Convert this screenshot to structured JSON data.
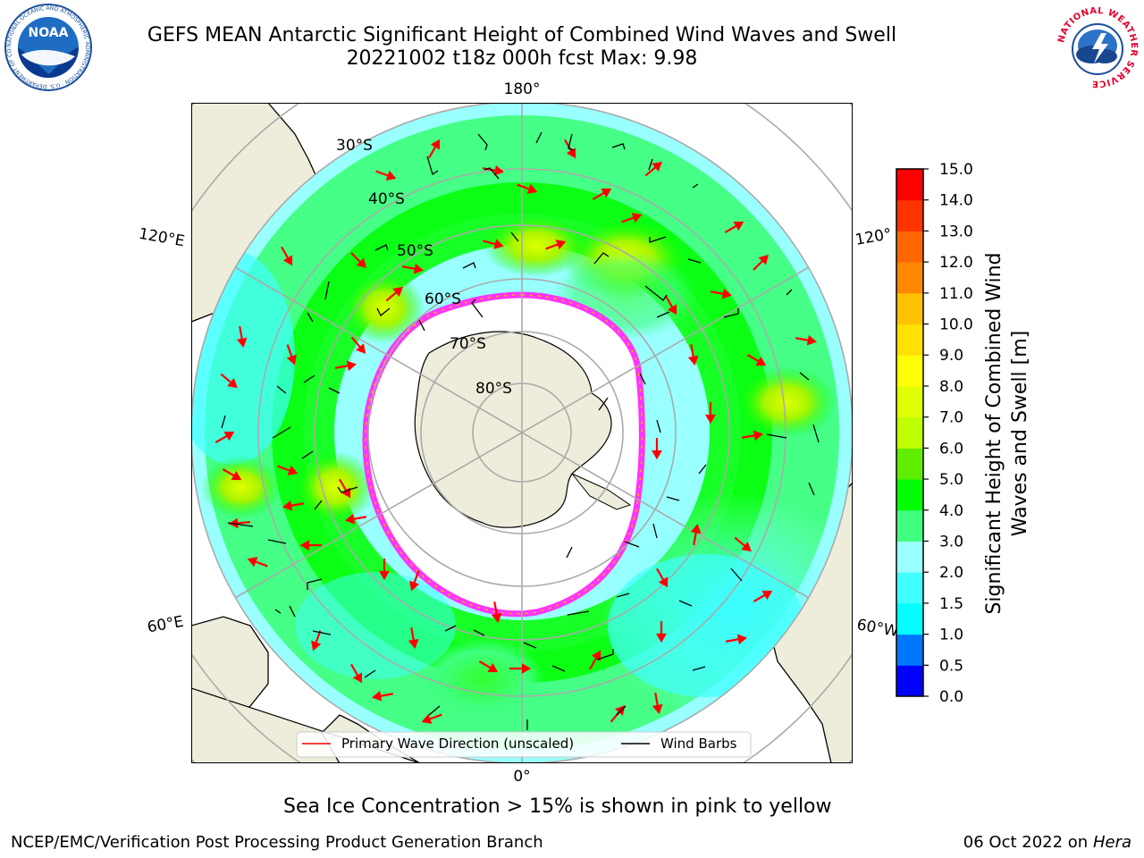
{
  "title": {
    "line1": "GEFS MEAN Antarctic Significant Height of Combined Wind Waves and Swell",
    "line2": "20221002 t18z 000h fcst   Max: 9.98"
  },
  "map": {
    "longitude_labels": {
      "top": "180°",
      "bottom": "0°",
      "upper_left": "120°E",
      "lower_left": "60°E",
      "upper_right": "120°",
      "lower_right": "60°W"
    },
    "latitude_labels": [
      "30°S",
      "40°S",
      "50°S",
      "60°S",
      "70°S",
      "80°S"
    ],
    "legend": {
      "wave_direction": "Primary Wave Direction (unscaled)",
      "wind_barbs": "Wind Barbs",
      "wave_color": "#ff0000",
      "barb_color": "#000000"
    },
    "colors": {
      "land": "#eeeddb",
      "ocean_low": "#99ffff",
      "ice_edge": "#ff33ff"
    }
  },
  "colorbar": {
    "label": "Significant Height of Combined Wind Waves and Swell [m]",
    "ticks": [
      "0.0",
      "0.5",
      "1.0",
      "1.5",
      "2.0",
      "3.0",
      "4.0",
      "5.0",
      "6.0",
      "7.0",
      "8.0",
      "9.0",
      "10.0",
      "11.0",
      "12.0",
      "13.0",
      "14.0",
      "15.0"
    ],
    "colors": [
      "#0000ff",
      "#0077ff",
      "#00ffff",
      "#40ffff",
      "#99ffff",
      "#40ff7f",
      "#00ff00",
      "#60ee00",
      "#c0ff00",
      "#e0ff00",
      "#ffff00",
      "#ffe000",
      "#ffc000",
      "#ff8800",
      "#ff6600",
      "#ff3300",
      "#ff0000"
    ]
  },
  "sea_ice_note": "Sea Ice Concentration > 15% is shown in pink to yellow",
  "footer": {
    "left": "NCEP/EMC/Verification Post Processing Product Generation Branch",
    "right_date": "06 Oct 2022 on",
    "right_host": "Hera"
  },
  "logos": {
    "noaa_text": "NOAA",
    "noaa_ring_text": "NATIONAL OCEANIC AND ATMOSPHERIC ADMINISTRATION · U.S. DEPARTMENT OF COMMERCE",
    "nws_ring_text": "NATIONAL WEATHER SERVICE"
  }
}
